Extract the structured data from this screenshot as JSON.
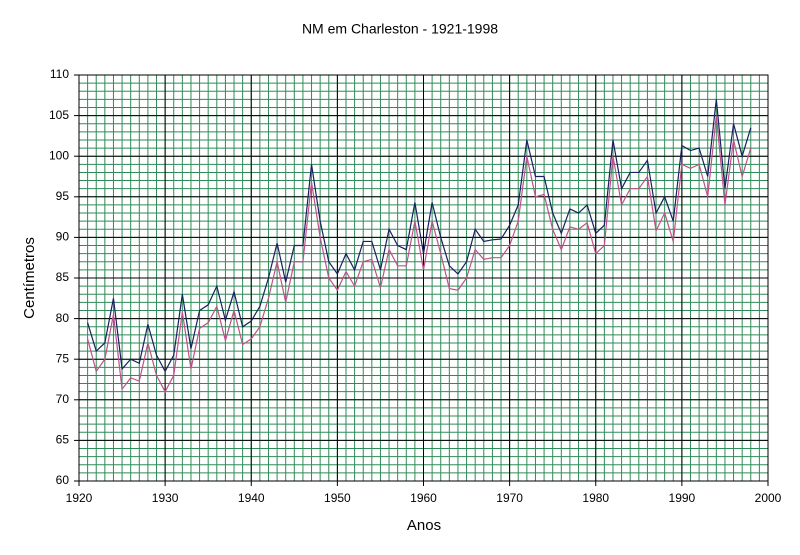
{
  "chart_data": {
    "type": "line",
    "title": "NM em Charleston - 1921-1998",
    "xlabel": "Anos",
    "ylabel": "Centímetros",
    "x": [
      1921,
      1922,
      1923,
      1924,
      1925,
      1926,
      1927,
      1928,
      1929,
      1930,
      1931,
      1932,
      1933,
      1934,
      1935,
      1936,
      1937,
      1938,
      1939,
      1940,
      1941,
      1942,
      1943,
      1944,
      1945,
      1946,
      1947,
      1948,
      1949,
      1950,
      1951,
      1952,
      1953,
      1954,
      1955,
      1956,
      1957,
      1958,
      1959,
      1960,
      1961,
      1962,
      1963,
      1964,
      1965,
      1966,
      1967,
      1968,
      1969,
      1970,
      1971,
      1972,
      1973,
      1974,
      1975,
      1976,
      1977,
      1978,
      1979,
      1980,
      1981,
      1982,
      1983,
      1984,
      1985,
      1986,
      1987,
      1988,
      1989,
      1990,
      1991,
      1992,
      1993,
      1994,
      1995,
      1996,
      1997,
      1998
    ],
    "series": [
      {
        "color": "#1a1f5e",
        "values": [
          79.5,
          76,
          77,
          82.5,
          73.8,
          75,
          74.5,
          79.3,
          75.5,
          73.5,
          75.5,
          83,
          76.3,
          81,
          81.7,
          84,
          79.8,
          83.3,
          79,
          79.7,
          81.5,
          85,
          89.3,
          84.5,
          89,
          89,
          99,
          92,
          87,
          85.5,
          88,
          86,
          89.5,
          89.5,
          86,
          91,
          89,
          88.5,
          94.3,
          88,
          94.3,
          90,
          86.5,
          85.5,
          87,
          91,
          89.5,
          89.7,
          89.8,
          91.5,
          94,
          102,
          97.5,
          97.5,
          93,
          90.5,
          93.5,
          93,
          94,
          90.5,
          91.5,
          102,
          96,
          98,
          98,
          99.5,
          93,
          95,
          92,
          101.3,
          100.7,
          101,
          97.5,
          107,
          96,
          104,
          100,
          103.5
        ]
      },
      {
        "color": "#c0508a",
        "values": [
          77.5,
          73.5,
          75,
          80.5,
          71.3,
          72.7,
          72.3,
          77,
          73,
          71,
          73,
          80.8,
          73.8,
          78.8,
          79.5,
          81.5,
          77.3,
          81,
          76.8,
          77.5,
          79,
          82.5,
          87,
          82,
          87,
          87,
          96.8,
          90,
          85,
          83.5,
          85.8,
          84,
          87,
          87.3,
          83.8,
          88.5,
          86.5,
          86.5,
          92,
          86,
          92,
          88,
          83.7,
          83.5,
          85,
          88.5,
          87.3,
          87.5,
          87.5,
          89,
          92,
          100,
          95,
          95.3,
          91,
          88.5,
          91.3,
          91,
          91.8,
          88,
          89,
          100,
          94,
          96,
          96,
          97.5,
          90.8,
          93,
          89.5,
          99,
          98.5,
          99,
          95,
          105,
          94,
          102,
          97.5,
          101
        ]
      }
    ],
    "xlim": [
      1920,
      2000
    ],
    "xticks": [
      1920,
      1930,
      1940,
      1950,
      1960,
      1970,
      1980,
      1990,
      2000
    ],
    "ylim": [
      60,
      110
    ],
    "yticks": [
      60,
      65,
      70,
      75,
      80,
      85,
      90,
      95,
      100,
      105,
      110
    ],
    "grid": true,
    "minor_grid": {
      "x": 1,
      "y": 1
    }
  }
}
